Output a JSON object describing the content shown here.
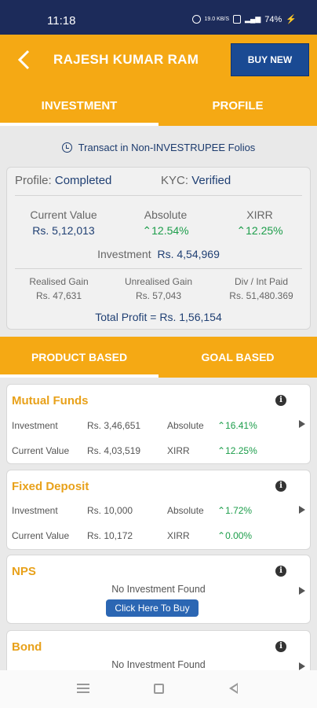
{
  "status_bar": {
    "time": "11:18",
    "speed": "19.0 KB/S",
    "battery": "74%"
  },
  "header": {
    "title": "RAJESH KUMAR RAM",
    "buy_new": "BUY NEW"
  },
  "tabs": [
    {
      "label": "INVESTMENT",
      "active": true
    },
    {
      "label": "PROFILE",
      "active": false
    }
  ],
  "folios_link": "Transact in Non-INVESTRUPEE Folios",
  "summary": {
    "profile_label": "Profile:",
    "profile_value": "Completed",
    "kyc_label": "KYC:",
    "kyc_value": "Verified",
    "current_value_label": "Current Value",
    "current_value": "Rs. 5,12,013",
    "absolute_label": "Absolute",
    "absolute_value": "12.54%",
    "xirr_label": "XIRR",
    "xirr_value": "12.25%",
    "investment_label": "Investment",
    "investment_value": "Rs. 4,54,969",
    "realised_label": "Realised Gain",
    "realised_value": "Rs. 47,631",
    "unrealised_label": "Unrealised Gain",
    "unrealised_value": "Rs. 57,043",
    "div_label": "Div / Int Paid",
    "div_value": "Rs. 51,480.369",
    "total_profit": "Total Profit = Rs. 1,56,154"
  },
  "sub_tabs": [
    {
      "label": "PRODUCT BASED",
      "active": true
    },
    {
      "label": "GOAL BASED",
      "active": false
    }
  ],
  "products": {
    "mutual_funds": {
      "title": "Mutual Funds",
      "investment_label": "Investment",
      "investment": "Rs. 3,46,651",
      "absolute_label": "Absolute",
      "absolute": "16.41%",
      "current_label": "Current Value",
      "current": "Rs. 4,03,519",
      "xirr_label": "XIRR",
      "xirr": "12.25%"
    },
    "fixed_deposit": {
      "title": "Fixed Deposit",
      "investment_label": "Investment",
      "investment": "Rs. 10,000",
      "absolute_label": "Absolute",
      "absolute": "1.72%",
      "current_label": "Current Value",
      "current": "Rs. 10,172",
      "xirr_label": "XIRR",
      "xirr": "0.00%"
    },
    "nps": {
      "title": "NPS",
      "empty": "No Investment Found",
      "cta": "Click Here To Buy"
    },
    "bond": {
      "title": "Bond",
      "empty": "No Investment Found"
    }
  },
  "icons": {
    "info": "i",
    "up_arrow": "^",
    "back": "<"
  },
  "colors": {
    "accent": "#f5a914",
    "navy": "#1a4a93",
    "gain": "#1c9d4a"
  }
}
